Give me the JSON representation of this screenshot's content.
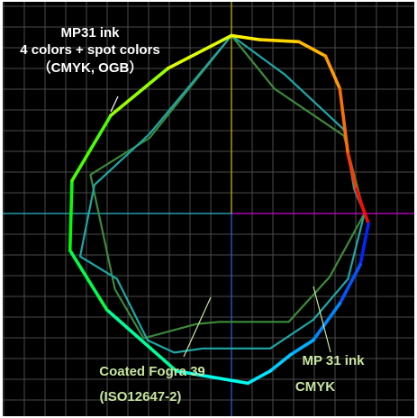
{
  "chart_data": {
    "type": "line",
    "subtype": "color-gamut-a-b-plane",
    "title": "",
    "xlabel": "",
    "ylabel": "",
    "xlim": [
      -100,
      100
    ],
    "ylim": [
      -100,
      100
    ],
    "grid": true,
    "axis_colors": {
      "positive_x": "#d000d0",
      "negative_x": "#2fb8c8",
      "positive_y": "#c8b000",
      "negative_y": "#1f5fd8"
    },
    "series": [
      {
        "name": "MP31 ink 4 colors + spot colors (CMYK, OGB)",
        "style": "hue-gradient",
        "points": [
          [
            0.0,
            87.0
          ],
          [
            14.0,
            85.0
          ],
          [
            33.0,
            84.0
          ],
          [
            46.0,
            77.0
          ],
          [
            53.0,
            61.0
          ],
          [
            57.0,
            29.0
          ],
          [
            61.0,
            12.0
          ],
          [
            67.0,
            -5.0
          ],
          [
            63.0,
            -25.0
          ],
          [
            53.0,
            -44.0
          ],
          [
            40.0,
            -62.0
          ],
          [
            29.0,
            -69.0
          ],
          [
            19.0,
            -77.0
          ],
          [
            8.0,
            -83.0
          ],
          [
            -27.0,
            -77.0
          ],
          [
            -61.0,
            -47.0
          ],
          [
            -79.0,
            -18.0
          ],
          [
            -78.0,
            16.0
          ],
          [
            -59.0,
            48.0
          ],
          [
            -31.0,
            71.0
          ],
          [
            0.0,
            87.0
          ]
        ]
      },
      {
        "name": "MP 31 ink CMYK",
        "color": "#1fa7a7",
        "points": [
          [
            0.0,
            87.0
          ],
          [
            26.0,
            68.0
          ],
          [
            55.0,
            41.0
          ],
          [
            60.0,
            12.0
          ],
          [
            65.0,
            0.0
          ],
          [
            57.0,
            -32.0
          ],
          [
            40.0,
            -52.0
          ],
          [
            19.0,
            -66.0
          ],
          [
            -14.0,
            -66.0
          ],
          [
            -28.0,
            -68.0
          ],
          [
            -41.0,
            -62.0
          ],
          [
            -56.0,
            -32.0
          ],
          [
            -74.0,
            -21.0
          ],
          [
            -67.0,
            14.0
          ],
          [
            -40.0,
            39.0
          ],
          [
            0.0,
            87.0
          ]
        ]
      },
      {
        "name": "Coated Fogra 39 (ISO12647-2)",
        "color": "#3d8a3a",
        "points": [
          [
            0.0,
            87.0
          ],
          [
            21.0,
            61.0
          ],
          [
            55.0,
            38.0
          ],
          [
            65.0,
            0.0
          ],
          [
            48.0,
            -31.0
          ],
          [
            28.0,
            -53.0
          ],
          [
            -6.0,
            -53.0
          ],
          [
            -17.0,
            -54.0
          ],
          [
            -43.0,
            -61.0
          ],
          [
            -57.0,
            -37.0
          ],
          [
            -69.0,
            19.0
          ],
          [
            -40.0,
            37.0
          ],
          [
            0.0,
            87.0
          ]
        ]
      }
    ],
    "annotations": [
      {
        "lines": [
          "MP31 ink",
          "4 colors + spot colors",
          "（CMYK, OGB）"
        ]
      },
      {
        "lines": [
          "MP 31 ink",
          "CMYK"
        ]
      },
      {
        "lines": [
          "Coated Fogra 39",
          "(ISO12647-2)"
        ]
      }
    ]
  }
}
